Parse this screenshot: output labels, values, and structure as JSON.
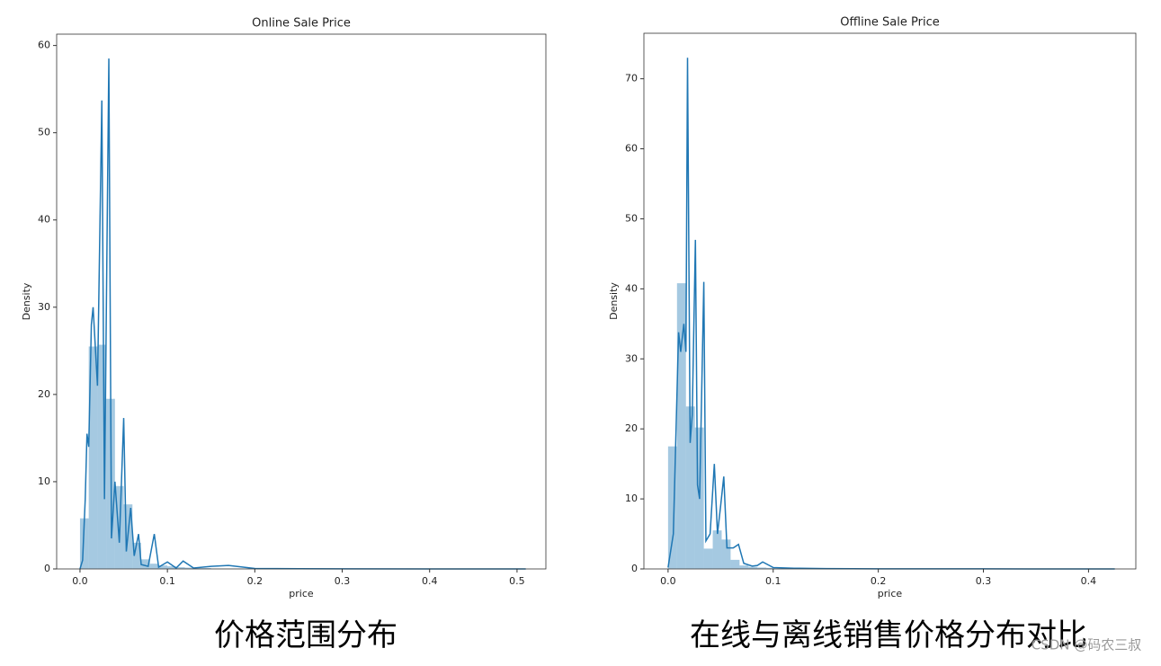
{
  "chart_data": [
    {
      "type": "histogram",
      "title": "Online Sale Price",
      "xlabel": "price",
      "ylabel": "Density",
      "color": "#1f77b4",
      "bins": [
        0,
        0.01,
        0.02,
        0.03,
        0.04,
        0.05,
        0.06,
        0.07,
        0.08,
        0.09,
        0.1,
        0.11,
        0.12,
        0.13,
        0.14,
        0.15,
        0.16,
        0.17,
        0.18,
        0.19,
        0.2,
        0.21,
        0.22,
        0.23,
        0.24,
        0.25,
        0.26,
        0.27,
        0.28,
        0.29,
        0.3,
        0.31,
        0.32,
        0.33,
        0.34,
        0.35,
        0.36,
        0.37,
        0.38,
        0.39,
        0.4,
        0.41,
        0.42,
        0.43,
        0.44,
        0.45,
        0.46,
        0.47,
        0.48,
        0.49,
        0.5,
        0.51
      ],
      "values": [
        5.8,
        25.5,
        25.7,
        19.5,
        9.5,
        7.4,
        3.0,
        1.1,
        0.6,
        0.4,
        0.3,
        0.2,
        0.15,
        0.1,
        0.1,
        0.05,
        0.05,
        0.05,
        0.04,
        0.03,
        0.03,
        0.03,
        0.02,
        0.02,
        0.02,
        0.02,
        0.02,
        0.01,
        0.01,
        0.01,
        0.01,
        0.01,
        0.01,
        0.01,
        0.01,
        0.01,
        0.01,
        0.01,
        0.01,
        0.01,
        0.01,
        0.01,
        0.01,
        0.01,
        0.01,
        0.01,
        0.01,
        0.01,
        0.01,
        0.01,
        0.01
      ],
      "kde": {
        "color": "#1f77b4",
        "x": [
          0,
          0.003,
          0.006,
          0.008,
          0.01,
          0.013,
          0.015,
          0.02,
          0.025,
          0.028,
          0.033,
          0.036,
          0.04,
          0.045,
          0.05,
          0.053,
          0.058,
          0.062,
          0.067,
          0.07,
          0.078,
          0.085,
          0.09,
          0.1,
          0.11,
          0.118,
          0.13,
          0.15,
          0.17,
          0.2,
          0.25,
          0.3,
          0.4,
          0.51
        ],
        "values": [
          0,
          1,
          8,
          15.5,
          14,
          28,
          30,
          21,
          53.7,
          8,
          58.5,
          3.5,
          10,
          3,
          17.3,
          2,
          7,
          1.5,
          4,
          0.5,
          0.3,
          4,
          0.2,
          0.8,
          0.1,
          0.9,
          0.1,
          0.3,
          0.4,
          0.05,
          0.02,
          0.01,
          0,
          0
        ]
      },
      "xlim": [
        -0.0267,
        0.533
      ],
      "ylim": [
        0,
        61.3
      ],
      "xticks": [
        {
          "value": 0,
          "label": "0.0"
        },
        0.1,
        0.2,
        0.3,
        0.4,
        0.5
      ],
      "yticks": [
        0,
        10,
        20,
        30,
        40,
        50,
        60
      ]
    },
    {
      "type": "histogram",
      "title": "Offline Sale Price",
      "xlabel": "price",
      "ylabel": "Density",
      "color": "#1f77b4",
      "bins": [
        0,
        0.0085,
        0.017,
        0.0255,
        0.034,
        0.0425,
        0.051,
        0.0595,
        0.068,
        0.0765,
        0.085,
        0.0935,
        0.102,
        0.1105,
        0.119,
        0.1275,
        0.136,
        0.1445,
        0.153,
        0.1615,
        0.17,
        0.1785,
        0.187,
        0.1955,
        0.204,
        0.2125,
        0.221,
        0.2295,
        0.238,
        0.2465,
        0.255,
        0.2635,
        0.272,
        0.2805,
        0.289,
        0.2975,
        0.306,
        0.3145,
        0.323,
        0.3315,
        0.34,
        0.3485,
        0.357,
        0.3655,
        0.374,
        0.3825,
        0.391,
        0.3995,
        0.408,
        0.4165,
        0.425
      ],
      "values": [
        17.5,
        40.8,
        23.2,
        20.2,
        2.9,
        5.5,
        4.2,
        1.3,
        0.5,
        0.3,
        0.2,
        0.15,
        0.1,
        0.1,
        0.08,
        0.06,
        0.05,
        0.04,
        0.03,
        0.03,
        0.02,
        0.02,
        0.02,
        0.02,
        0.01,
        0.01,
        0.01,
        0.01,
        0.01,
        0.01,
        0.01,
        0.01,
        0.01,
        0.01,
        0.01,
        0.01,
        0.01,
        0.01,
        0.01,
        0.01,
        0.01,
        0.01,
        0.01,
        0.01,
        0.01,
        0.01,
        0.01,
        0.01,
        0.01,
        0.01
      ],
      "kde": {
        "color": "#1f77b4",
        "x": [
          0,
          0.005,
          0.01,
          0.012,
          0.015,
          0.017,
          0.0185,
          0.021,
          0.023,
          0.026,
          0.028,
          0.03,
          0.034,
          0.036,
          0.04,
          0.044,
          0.047,
          0.05,
          0.053,
          0.056,
          0.062,
          0.067,
          0.072,
          0.08,
          0.085,
          0.09,
          0.1,
          0.12,
          0.15,
          0.2,
          0.3,
          0.425
        ],
        "values": [
          0.2,
          5,
          33.8,
          31,
          35,
          31,
          73,
          18,
          22,
          47,
          12,
          10,
          41,
          4,
          5,
          15,
          5,
          9,
          13.2,
          3,
          3,
          3.5,
          0.8,
          0.4,
          0.5,
          1,
          0.2,
          0.1,
          0.05,
          0.02,
          0.01,
          0
        ]
      },
      "xlim": [
        -0.023,
        0.445
      ],
      "ylim": [
        0,
        76.5
      ],
      "xticks": [
        {
          "value": 0,
          "label": "0.0"
        },
        0.1,
        0.2,
        0.3,
        0.4
      ],
      "yticks": [
        0,
        10,
        20,
        30,
        40,
        50,
        60,
        70
      ]
    }
  ],
  "captions": [
    "价格范围分布",
    "在线与离线销售价格分布对比"
  ],
  "watermark": "CSDN @码农三叔"
}
